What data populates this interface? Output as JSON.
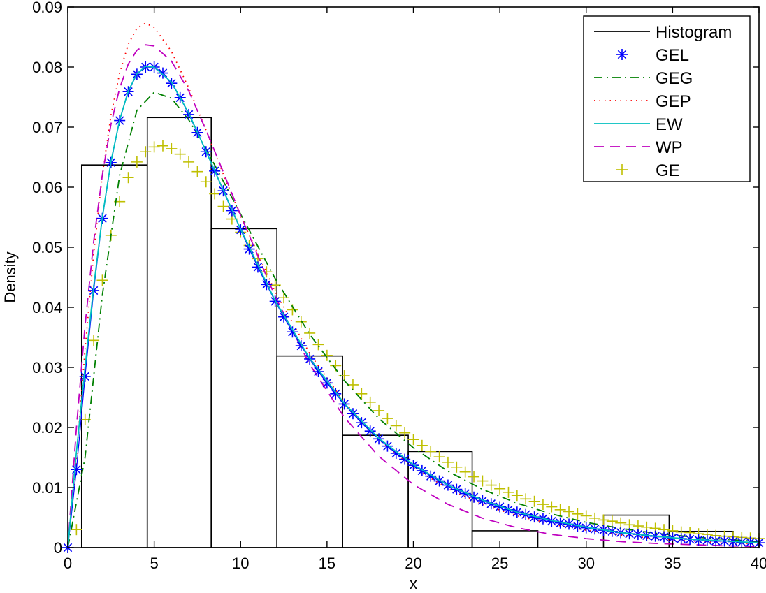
{
  "chart_data": {
    "type": "line",
    "title": "",
    "xlabel": "x",
    "ylabel": "Density",
    "xlim": [
      0,
      40
    ],
    "ylim": [
      0,
      0.09
    ],
    "xticks": [
      0,
      5,
      10,
      15,
      20,
      25,
      30,
      35,
      40
    ],
    "xtick_labels": [
      "0",
      "5",
      "10",
      "15",
      "20",
      "25",
      "30",
      "35",
      "40"
    ],
    "yticks": [
      0,
      0.01,
      0.02,
      0.03,
      0.04,
      0.05,
      0.06,
      0.07,
      0.08,
      0.09
    ],
    "ytick_labels": [
      "0",
      "0.01",
      "0.02",
      "0.03",
      "0.04",
      "0.05",
      "0.06",
      "0.07",
      "0.08",
      "0.09"
    ],
    "grid": false,
    "legend_position": "upper right",
    "histogram": {
      "name": "Histogram",
      "color": "#000000",
      "bin_edges": [
        0.8,
        4.6,
        8.3,
        12.1,
        15.9,
        19.7,
        23.4,
        27.2,
        31.0,
        34.8,
        38.5
      ],
      "heights": [
        0.0637,
        0.0716,
        0.0531,
        0.0319,
        0.0187,
        0.016,
        0.0028,
        0.0,
        0.0054,
        0.0027
      ]
    },
    "series": [
      {
        "name": "GEL",
        "color": "#0000ff",
        "style": "marker-star",
        "x": [
          0,
          0.5,
          1,
          1.5,
          2,
          2.5,
          3,
          3.5,
          4,
          4.5,
          5,
          5.5,
          6,
          6.5,
          7,
          7.5,
          8,
          8.5,
          9,
          9.5,
          10,
          10.5,
          11,
          11.5,
          12,
          12.5,
          13,
          13.5,
          14,
          14.5,
          15,
          15.5,
          16,
          16.5,
          17,
          17.5,
          18,
          18.5,
          19,
          19.5,
          20,
          20.5,
          21,
          21.5,
          22,
          22.5,
          23,
          23.5,
          24,
          24.5,
          25,
          25.5,
          26,
          26.5,
          27,
          27.5,
          28,
          28.5,
          29,
          29.5,
          30,
          30.5,
          31,
          31.5,
          32,
          32.5,
          33,
          33.5,
          34,
          34.5,
          35,
          35.5,
          36,
          36.5,
          37,
          37.5,
          38,
          38.5,
          39,
          39.5,
          40
        ],
        "values": [
          0,
          0.013,
          0.0285,
          0.0428,
          0.0548,
          0.0641,
          0.0711,
          0.0759,
          0.0788,
          0.08,
          0.08,
          0.079,
          0.0773,
          0.0749,
          0.0721,
          0.0691,
          0.0659,
          0.0627,
          0.0594,
          0.0561,
          0.0529,
          0.0497,
          0.0467,
          0.0438,
          0.041,
          0.0384,
          0.0359,
          0.0336,
          0.0314,
          0.0293,
          0.0274,
          0.0256,
          0.0239,
          0.0223,
          0.0208,
          0.0194,
          0.0181,
          0.0169,
          0.0157,
          0.0147,
          0.0137,
          0.0128,
          0.0119,
          0.0111,
          0.0104,
          0.0097,
          0.009,
          0.0084,
          0.0078,
          0.0073,
          0.0068,
          0.0063,
          0.0059,
          0.0055,
          0.0051,
          0.0048,
          0.0044,
          0.0041,
          0.0039,
          0.0036,
          0.0033,
          0.0031,
          0.0029,
          0.0027,
          0.0025,
          0.0023,
          0.0022,
          0.002,
          0.0019,
          0.0018,
          0.0016,
          0.0015,
          0.0014,
          0.0013,
          0.0012,
          0.0011,
          0.0011,
          0.001,
          0.0009,
          0.0009,
          0.0008
        ]
      },
      {
        "name": "GEG",
        "color": "#008000",
        "style": "dash-dot",
        "x": [
          0,
          1,
          2,
          3,
          4,
          5,
          6,
          7,
          8,
          9,
          10,
          12,
          14,
          16,
          18,
          20,
          22,
          24,
          26,
          28,
          30,
          32,
          34,
          36,
          38,
          40
        ],
        "values": [
          0,
          0.015,
          0.042,
          0.062,
          0.0728,
          0.0758,
          0.0748,
          0.0712,
          0.0664,
          0.061,
          0.0555,
          0.0448,
          0.0355,
          0.0278,
          0.0215,
          0.0166,
          0.0127,
          0.0097,
          0.0074,
          0.0056,
          0.0042,
          0.0032,
          0.0024,
          0.0018,
          0.0014,
          0.001
        ]
      },
      {
        "name": "GEP",
        "color": "#ff0000",
        "style": "dotted",
        "x": [
          0,
          0.5,
          1,
          1.5,
          2,
          2.5,
          3,
          3.5,
          4,
          4.5,
          5,
          6,
          7,
          8,
          9,
          10,
          12,
          14,
          16,
          18,
          20,
          22,
          24,
          26,
          28,
          30,
          32,
          34,
          36,
          38,
          40
        ],
        "values": [
          0,
          0.015,
          0.033,
          0.049,
          0.062,
          0.072,
          0.079,
          0.0838,
          0.0865,
          0.0873,
          0.0866,
          0.0826,
          0.0765,
          0.0695,
          0.0622,
          0.0552,
          0.0426,
          0.0323,
          0.0242,
          0.018,
          0.0133,
          0.0098,
          0.0072,
          0.0053,
          0.0039,
          0.0029,
          0.0021,
          0.0015,
          0.0011,
          0.0008,
          0.0006
        ]
      },
      {
        "name": "EW",
        "color": "#00bfbf",
        "style": "solid",
        "x": [
          0,
          0.5,
          1,
          1.5,
          2,
          2.5,
          3,
          3.5,
          4,
          4.5,
          5,
          6,
          7,
          8,
          9,
          10,
          12,
          14,
          16,
          18,
          20,
          22,
          24,
          26,
          28,
          30,
          32,
          34,
          36,
          38,
          40
        ],
        "values": [
          0,
          0.016,
          0.03,
          0.0435,
          0.055,
          0.0643,
          0.0712,
          0.076,
          0.0789,
          0.0801,
          0.08,
          0.0775,
          0.0723,
          0.066,
          0.0595,
          0.053,
          0.0411,
          0.0315,
          0.024,
          0.0182,
          0.0138,
          0.0104,
          0.0079,
          0.0059,
          0.0045,
          0.0034,
          0.0025,
          0.0019,
          0.0014,
          0.0011,
          0.0008
        ]
      },
      {
        "name": "WP",
        "color": "#bf00bf",
        "style": "dashed",
        "x": [
          0,
          0.5,
          1,
          1.5,
          2,
          2.5,
          3,
          3.5,
          4,
          4.5,
          5,
          6,
          7,
          8,
          9,
          10,
          12,
          14,
          16,
          18,
          20,
          22,
          24,
          26,
          28,
          30,
          32,
          34,
          36,
          38,
          40
        ],
        "values": [
          0,
          0.02,
          0.037,
          0.051,
          0.062,
          0.0705,
          0.0765,
          0.0805,
          0.0828,
          0.0837,
          0.0835,
          0.081,
          0.076,
          0.0695,
          0.0625,
          0.0553,
          0.0418,
          0.0305,
          0.0217,
          0.0152,
          0.0105,
          0.0072,
          0.0049,
          0.0033,
          0.0022,
          0.0015,
          0.001,
          0.0007,
          0.0005,
          0.0003,
          0.0002
        ]
      },
      {
        "name": "GE",
        "color": "#bfbf00",
        "style": "marker-plus",
        "x": [
          0,
          0.5,
          1,
          1.5,
          2,
          2.5,
          3,
          3.5,
          4,
          4.5,
          5,
          5.5,
          6,
          6.5,
          7,
          7.5,
          8,
          8.5,
          9,
          9.5,
          10,
          10.5,
          11,
          11.5,
          12,
          12.5,
          13,
          13.5,
          14,
          14.5,
          15,
          15.5,
          16,
          16.5,
          17,
          17.5,
          18,
          18.5,
          19,
          19.5,
          20,
          20.5,
          21,
          21.5,
          22,
          22.5,
          23,
          23.5,
          24,
          24.5,
          25,
          25.5,
          26,
          26.5,
          27,
          27.5,
          28,
          28.5,
          29,
          29.5,
          30,
          30.5,
          31,
          31.5,
          32,
          32.5,
          33,
          33.5,
          34,
          34.5,
          35,
          35.5,
          36,
          36.5,
          37,
          37.5,
          38,
          38.5,
          39,
          39.5,
          40
        ],
        "values": [
          0,
          0.003,
          0.0213,
          0.0345,
          0.0445,
          0.052,
          0.0576,
          0.0616,
          0.0642,
          0.0659,
          0.0667,
          0.0669,
          0.0664,
          0.0655,
          0.0642,
          0.0626,
          0.0609,
          0.0589,
          0.0568,
          0.0547,
          0.0525,
          0.0503,
          0.0481,
          0.0459,
          0.0437,
          0.0416,
          0.0396,
          0.0376,
          0.0357,
          0.0338,
          0.032,
          0.0303,
          0.0286,
          0.0271,
          0.0256,
          0.0242,
          0.0228,
          0.0215,
          0.0203,
          0.0191,
          0.018,
          0.017,
          0.016,
          0.0151,
          0.0142,
          0.0134,
          0.0126,
          0.0118,
          0.0111,
          0.0104,
          0.0098,
          0.0092,
          0.0087,
          0.0081,
          0.0077,
          0.0072,
          0.0068,
          0.0063,
          0.006,
          0.0056,
          0.0053,
          0.0049,
          0.0046,
          0.0044,
          0.0041,
          0.0038,
          0.0036,
          0.0034,
          0.0032,
          0.003,
          0.0028,
          0.0026,
          0.0025,
          0.0023,
          0.0022,
          0.002,
          0.0019,
          0.0018,
          0.0017,
          0.0016,
          0.0015
        ]
      }
    ],
    "legend": [
      {
        "label": "Histogram",
        "color": "#000000",
        "style": "solid"
      },
      {
        "label": "GEL",
        "color": "#0000ff",
        "style": "marker-star"
      },
      {
        "label": "GEG",
        "color": "#008000",
        "style": "dash-dot"
      },
      {
        "label": "GEP",
        "color": "#ff0000",
        "style": "dotted"
      },
      {
        "label": "EW",
        "color": "#00bfbf",
        "style": "solid"
      },
      {
        "label": "WP",
        "color": "#bf00bf",
        "style": "dashed"
      },
      {
        "label": "GE",
        "color": "#bfbf00",
        "style": "marker-plus"
      }
    ]
  }
}
